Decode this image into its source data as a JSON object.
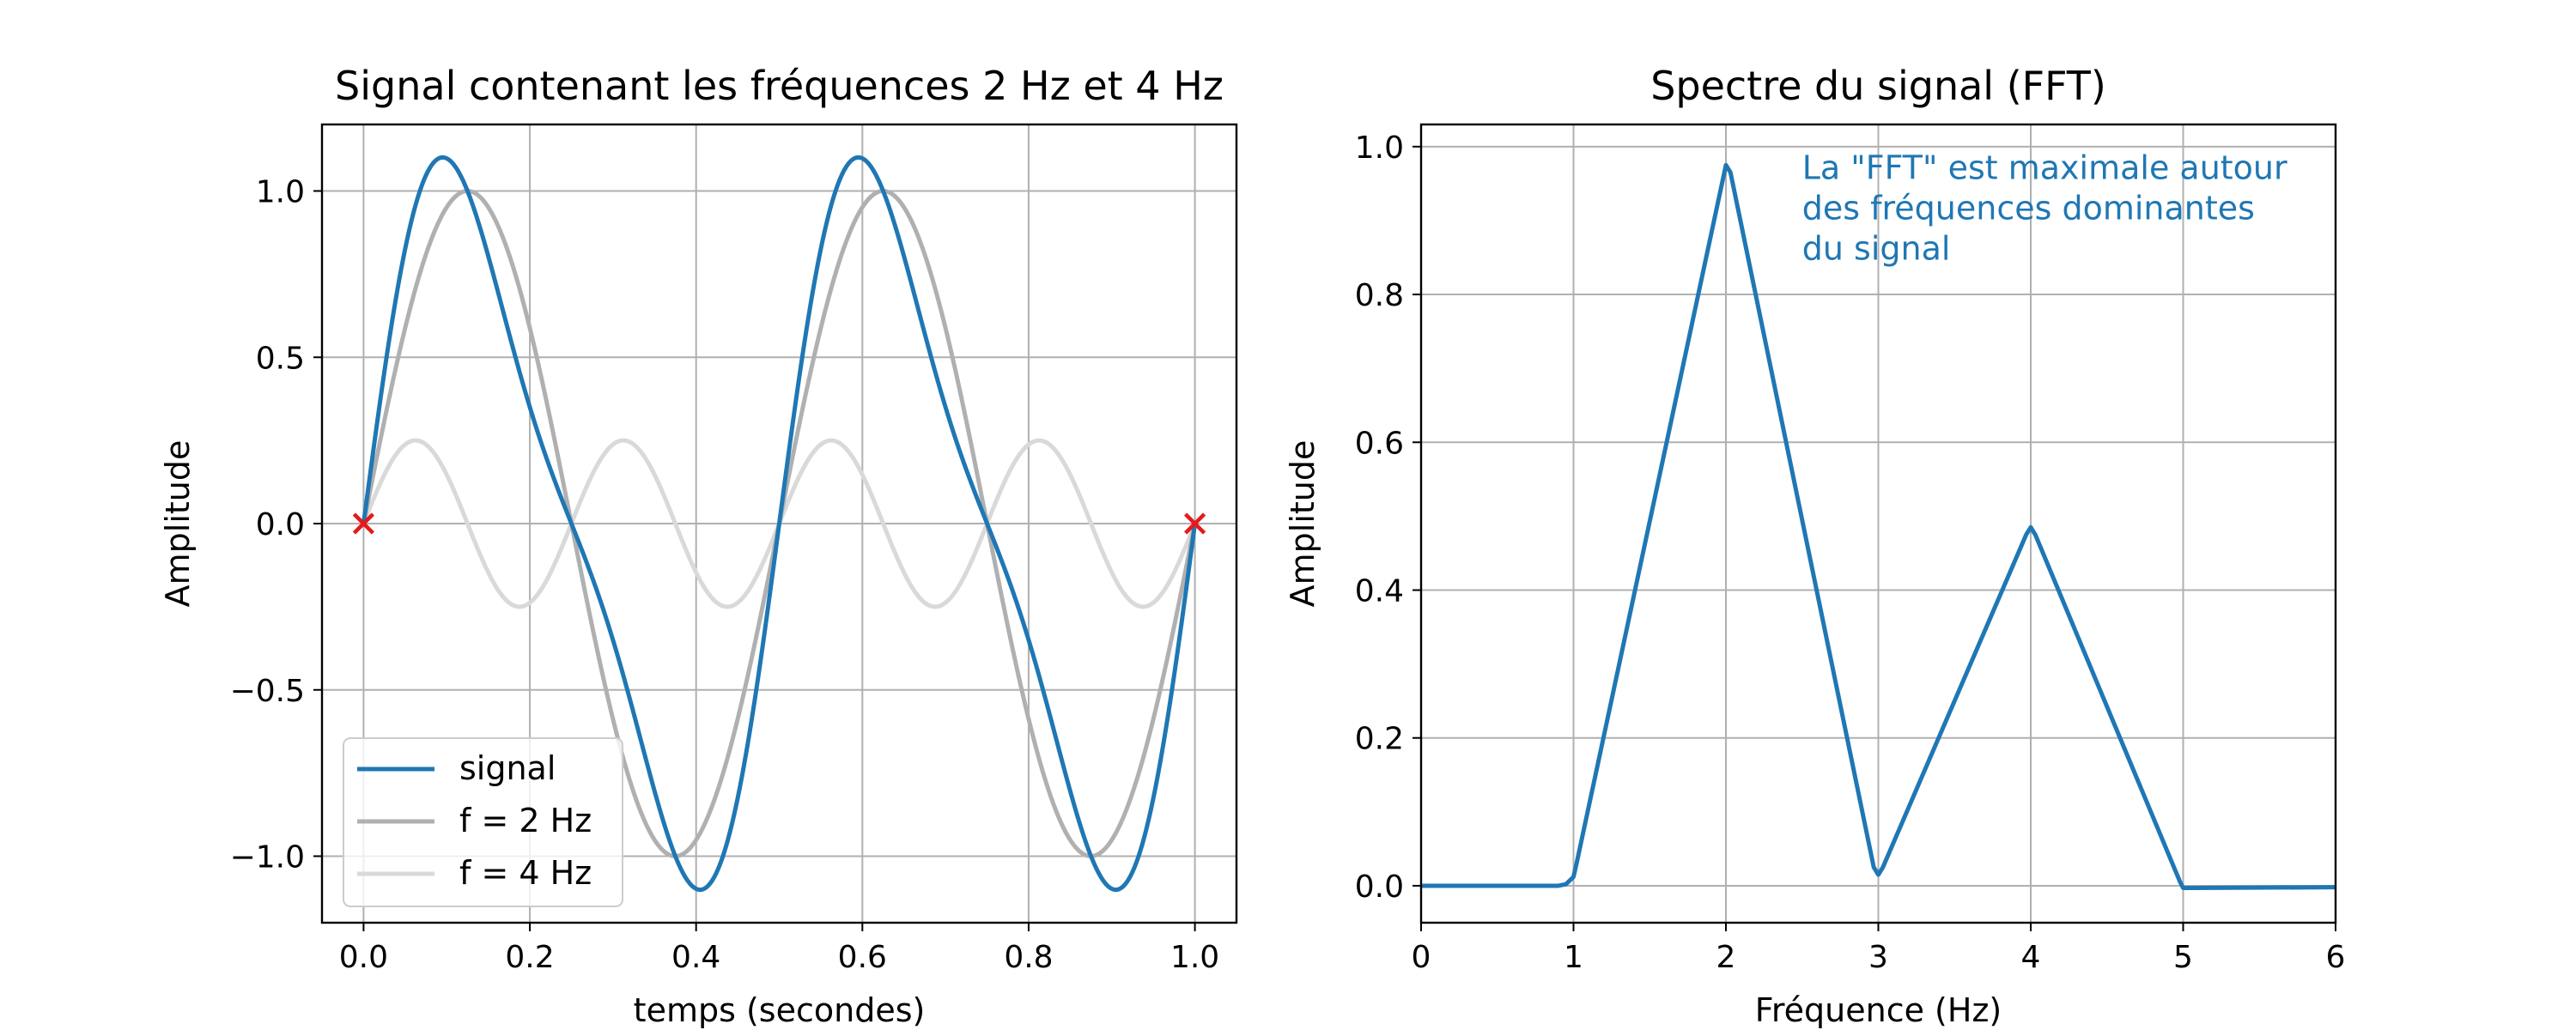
{
  "chart_data": [
    {
      "type": "line",
      "title": "Signal contenant les fréquences 2 Hz et 4 Hz",
      "xlabel": "temps (secondes)",
      "ylabel": "Amplitude",
      "xlim": [
        -0.05,
        1.05
      ],
      "ylim": [
        -1.2,
        1.2
      ],
      "xticks": [
        "0.0",
        "0.2",
        "0.4",
        "0.6",
        "0.8",
        "1.0"
      ],
      "xtick_values": [
        0,
        0.2,
        0.4,
        0.6,
        0.8,
        1.0
      ],
      "yticks": [
        "−1.0",
        "−0.5",
        "0.0",
        "0.5",
        "1.0"
      ],
      "ytick_values": [
        -1,
        -0.5,
        0,
        0.5,
        1
      ],
      "grid": true,
      "legend_position": "bottom-left",
      "series": [
        {
          "name": "signal",
          "formula": "sin(2π·2·t) + 0.25·sin(2π·4·t)",
          "color": "#1f77b4"
        },
        {
          "name": "f = 2 Hz",
          "formula": "sin(2π·2·t)",
          "color": "#b0b0b0"
        },
        {
          "name": "f = 4 Hz",
          "formula": "0.25·sin(2π·4·t)",
          "color": "#d9d9d9"
        }
      ],
      "markers": {
        "x": [
          0,
          1
        ],
        "y": [
          0,
          0
        ],
        "symbol": "x",
        "color": "#e41a1c"
      }
    },
    {
      "type": "line",
      "title": "Spectre du signal (FFT)",
      "xlabel": "Fréquence (Hz)",
      "ylabel": "Amplitude",
      "xlim": [
        0,
        6
      ],
      "ylim": [
        -0.05,
        1.03
      ],
      "xticks": [
        "0",
        "1",
        "2",
        "3",
        "4",
        "5",
        "6"
      ],
      "xtick_values": [
        0,
        1,
        2,
        3,
        4,
        5,
        6
      ],
      "yticks": [
        "0.0",
        "0.2",
        "0.4",
        "0.6",
        "0.8",
        "1.0"
      ],
      "ytick_values": [
        0,
        0.2,
        0.4,
        0.6,
        0.8,
        1.0
      ],
      "grid": true,
      "series": [
        {
          "name": "",
          "color": "#1f77b4",
          "x": [
            0,
            0.9,
            0.95,
            1.0,
            1.02,
            2.0,
            2.03,
            2.97,
            3.0,
            3.03,
            3.97,
            4.0,
            4.03,
            4.98,
            5.0,
            5.05,
            6.0
          ],
          "y": [
            0,
            0.0,
            0.002,
            0.012,
            0.03,
            0.975,
            0.965,
            0.025,
            0.015,
            0.025,
            0.475,
            0.485,
            0.475,
            0.005,
            -0.003,
            -0.003,
            -0.002
          ]
        }
      ],
      "annotation": {
        "lines": [
          "La \"FFT\" est maximale autour",
          "des fréquences dominantes",
          "du signal"
        ],
        "color": "#1f77b4",
        "x": 2.5,
        "y": 0.97
      }
    }
  ]
}
